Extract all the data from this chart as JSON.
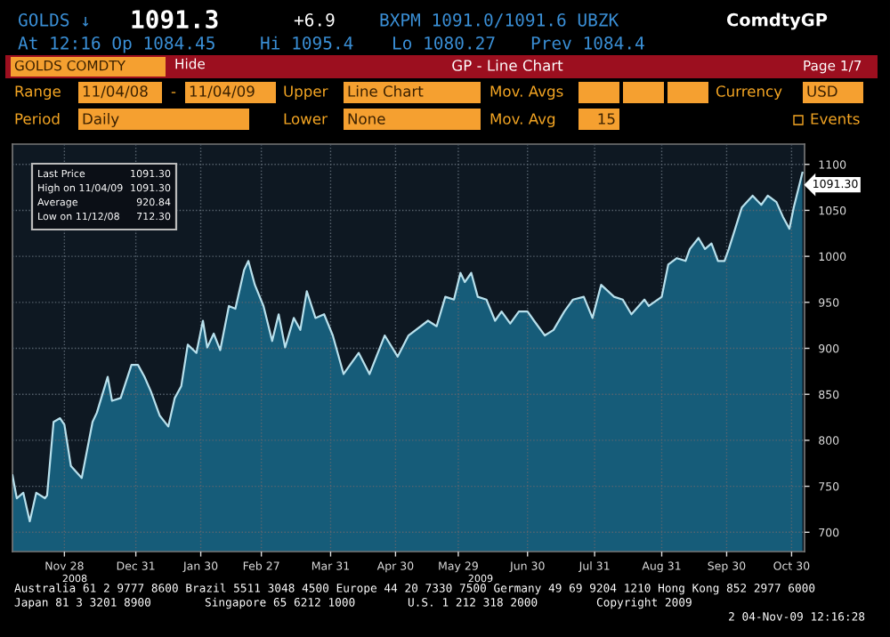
{
  "chart_data": {
    "type": "area",
    "title": "GP - Line Chart",
    "x": [
      "2008-11-04",
      "2008-11-06",
      "2008-11-09",
      "2008-11-12",
      "2008-11-15",
      "2008-11-19",
      "2008-11-20",
      "2008-11-23",
      "2008-11-26",
      "2008-11-28",
      "2008-12-01",
      "2008-12-06",
      "2008-12-11",
      "2008-12-13",
      "2008-12-18",
      "2008-12-20",
      "2008-12-24",
      "2008-12-29",
      "2009-01-01",
      "2009-01-04",
      "2009-01-07",
      "2009-01-11",
      "2009-01-15",
      "2009-01-18",
      "2009-01-21",
      "2009-01-24",
      "2009-01-28",
      "2009-01-31",
      "2009-02-02",
      "2009-02-05",
      "2009-02-08",
      "2009-02-12",
      "2009-02-15",
      "2009-02-19",
      "2009-02-21",
      "2009-02-24",
      "2009-02-28",
      "2009-03-04",
      "2009-03-07",
      "2009-03-10",
      "2009-03-14",
      "2009-03-17",
      "2009-03-20",
      "2009-03-24",
      "2009-03-28",
      "2009-04-01",
      "2009-04-06",
      "2009-04-09",
      "2009-04-13",
      "2009-04-18",
      "2009-04-25",
      "2009-05-01",
      "2009-05-06",
      "2009-05-15",
      "2009-05-19",
      "2009-05-23",
      "2009-05-27",
      "2009-05-30",
      "2009-06-01",
      "2009-06-04",
      "2009-06-07",
      "2009-06-11",
      "2009-06-15",
      "2009-06-18",
      "2009-06-22",
      "2009-06-26",
      "2009-06-30",
      "2009-07-03",
      "2009-07-08",
      "2009-07-12",
      "2009-07-17",
      "2009-07-21",
      "2009-07-26",
      "2009-07-30",
      "2009-08-03",
      "2009-08-09",
      "2009-08-13",
      "2009-08-17",
      "2009-08-23",
      "2009-08-25",
      "2009-08-31",
      "2009-09-03",
      "2009-09-07",
      "2009-09-11",
      "2009-09-13",
      "2009-09-17",
      "2009-09-20",
      "2009-09-23",
      "2009-09-26",
      "2009-09-29",
      "2009-10-01",
      "2009-10-07",
      "2009-10-12",
      "2009-10-16",
      "2009-10-19",
      "2009-10-23",
      "2009-10-26",
      "2009-10-29",
      "2009-10-31",
      "2009-11-04"
    ],
    "series": [
      {
        "color": "#b8e0ec",
        "values": [
          762,
          737,
          743,
          712,
          743,
          737,
          740,
          820,
          824,
          817,
          772,
          759,
          820,
          830,
          869,
          843,
          846,
          882,
          882,
          869,
          853,
          827,
          815,
          846,
          859,
          904,
          895,
          930,
          901,
          916,
          898,
          946,
          943,
          985,
          995,
          969,
          946,
          908,
          937,
          901,
          933,
          920,
          962,
          933,
          937,
          914,
          872,
          882,
          895,
          872,
          914,
          891,
          914,
          930,
          924,
          956,
          953,
          982,
          972,
          982,
          956,
          953,
          930,
          940,
          927,
          940,
          940,
          930,
          914,
          920,
          940,
          953,
          956,
          933,
          969,
          956,
          953,
          937,
          953,
          946,
          956,
          991,
          998,
          995,
          1008,
          1020,
          1008,
          1014,
          995,
          995,
          1008,
          1053,
          1066,
          1056,
          1066,
          1059,
          1043,
          1030,
          1053,
          1091
        ]
      }
    ],
    "xlim": [
      "2008-11-04",
      "2009-11-05"
    ],
    "xticks": [
      {
        "value": "2008-11-28",
        "label": "Nov 28"
      },
      {
        "value": "2008-12-31",
        "label": "Dec 31"
      },
      {
        "value": "2009-01-30",
        "label": "Jan 30"
      },
      {
        "value": "2009-02-27",
        "label": "Feb 27"
      },
      {
        "value": "2009-03-31",
        "label": "Mar 31"
      },
      {
        "value": "2009-04-30",
        "label": "Apr 30"
      },
      {
        "value": "2009-05-29",
        "label": "May 29"
      },
      {
        "value": "2009-06-30",
        "label": "Jun 30"
      },
      {
        "value": "2009-07-31",
        "label": "Jul 31"
      },
      {
        "value": "2009-08-31",
        "label": "Aug 31"
      },
      {
        "value": "2009-09-30",
        "label": "Sep 30"
      },
      {
        "value": "2009-10-30",
        "label": "Oct 30"
      }
    ],
    "ylim": [
      679,
      1122
    ],
    "yticks": [
      700,
      750,
      800,
      850,
      900,
      950,
      1000,
      1050,
      1100
    ],
    "grid": true,
    "line_style": "solid",
    "annotations": [
      "GOLDS ↓",
      "1091.3",
      "+6.9",
      "BXPM 1091.0/1091.6 UBZK",
      "ComdtyGP",
      "At 12:16 Op 1084.45",
      "Hi 1095.4",
      "Lo 1080.27",
      "Prev 1084.4",
      "GOLDS COMDTY",
      "Hide",
      "Page 1/7",
      "Range",
      "11/04/08",
      "-",
      "11/04/09",
      "Upper",
      "Line Chart",
      "Mov. Avgs",
      "Currency",
      "USD",
      "Period",
      "Daily",
      "Lower",
      "None",
      "Mov. Avg",
      "15",
      "Events",
      "Last Price",
      "1091.30",
      "High on 11/04/09",
      "1091.30",
      "Average",
      "920.84",
      "Low on 11/12/08",
      "712.30",
      "2008",
      "2009",
      "Australia 61 2 9777 8600 Brazil 5511 3048 4500 Europe 44 20 7330 7500 Germany 49 69 9204 1210 Hong Kong 852 2977 6000",
      "Japan 81 3 3201 8900",
      "Singapore 65 6212 1000",
      "U.S. 1 212 318 2000",
      "Copyright 2009",
      "2 04-Nov-09 12:16:28",
      {
        "text": "1091.30",
        "x": "2009-11-04",
        "y": 1091.3
      }
    ]
  }
}
